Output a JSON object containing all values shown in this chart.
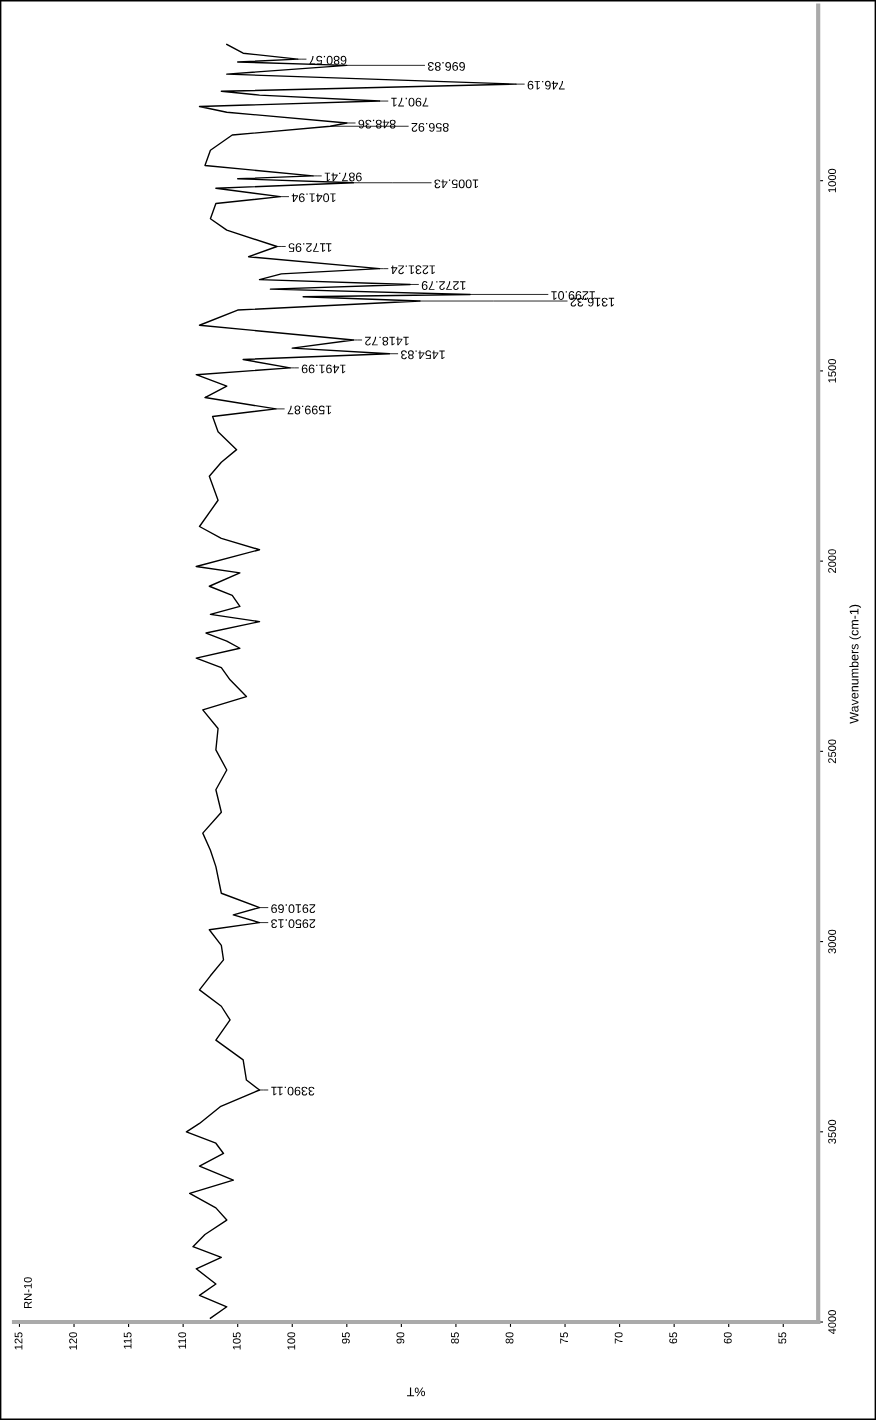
{
  "chart_data": {
    "type": "line",
    "orientation": "horizontal",
    "xlabel": "%T",
    "ylabel": "Wavenumbers (cm-1)",
    "color": "#000000",
    "x": [
      642,
      665,
      680.57,
      688,
      696.83,
      720,
      746.19,
      765,
      775,
      790.71,
      805,
      820,
      848.36,
      856.92,
      880,
      920,
      960,
      987.41,
      995,
      1005.43,
      1020,
      1041.94,
      1060,
      1100,
      1130,
      1172.95,
      1200,
      1231.24,
      1245,
      1260,
      1272.79,
      1285,
      1299.01,
      1305,
      1316.32,
      1340,
      1380,
      1418.72,
      1440,
      1454.83,
      1470,
      1491.99,
      1510,
      1540,
      1570,
      1599.87,
      1620,
      1660,
      1707,
      1740,
      1777,
      1840,
      1909,
      1940,
      1970,
      2014,
      2031,
      2066,
      2090,
      2119,
      2140,
      2159,
      2189,
      2210,
      2229,
      2255,
      2280,
      2312,
      2356,
      2391,
      2440,
      2496,
      2549,
      2601,
      2660,
      2715,
      2760,
      2803,
      2873,
      2910.69,
      2930,
      2950.13,
      2969,
      3010,
      3048,
      3090,
      3127,
      3170,
      3206,
      3259,
      3311,
      3364,
      3390.11,
      3434,
      3478,
      3500,
      3530,
      3557,
      3590,
      3627,
      3662,
      3700,
      3732,
      3770,
      3802,
      3830,
      3860,
      3900,
      3930,
      3960,
      3990
    ],
    "values": [
      106.0,
      104.5,
      99.5,
      105,
      95,
      106,
      79.5,
      106.5,
      103,
      92,
      108.5,
      106,
      95,
      96.5,
      105.5,
      107.5,
      108,
      98.1,
      105,
      94.4,
      107,
      101.1,
      107,
      107.5,
      106,
      101.4,
      104,
      92,
      101,
      103,
      89.2,
      102,
      83.7,
      99,
      88.3,
      105,
      108.5,
      94.4,
      100,
      91.1,
      104.5,
      100.2,
      108.8,
      106,
      108,
      101.5,
      107.3,
      106.8,
      105.1,
      106.5,
      107.6,
      106.8,
      108.5,
      106.5,
      103.0,
      108.8,
      104.8,
      107.6,
      105.5,
      104.8,
      107.5,
      103.0,
      107.9,
      106,
      104.8,
      108.8,
      106.5,
      105.7,
      104.2,
      108.2,
      106.8,
      107.0,
      106.0,
      107.0,
      106.5,
      108.2,
      107.5,
      107.0,
      106.5,
      103.0,
      105.4,
      103.0,
      107.6,
      106.5,
      106.3,
      107.5,
      108.5,
      106.5,
      105.7,
      107.0,
      104.5,
      104.2,
      103.0,
      106.6,
      108.5,
      109.7,
      107,
      106.3,
      108.5,
      105.4,
      109.4,
      107,
      106.0,
      108,
      109.1,
      106.5,
      108.8,
      107.0,
      108.5,
      106.0,
      107.5
    ],
    "xlim": [
      125.5,
      51.8
    ],
    "xticks": [
      125,
      120,
      115,
      110,
      105,
      100,
      95,
      90,
      85,
      80,
      75,
      70,
      65,
      60,
      55
    ],
    "ylim": [
      4000,
      540
    ],
    "yticks": [
      1000,
      1500,
      2000,
      2500,
      3000,
      3500,
      4000
    ],
    "grid": false,
    "annotations": [
      "RN-10",
      {
        "text": "680.57",
        "x": 99.5,
        "y": 680.57
      },
      {
        "text": "696.83",
        "x": 95,
        "y": 696.83
      },
      {
        "text": "746.19",
        "x": 79.5,
        "y": 746.19
      },
      {
        "text": "790.71",
        "x": 92,
        "y": 790.71
      },
      {
        "text": "848.36",
        "x": 95,
        "y": 848.36
      },
      {
        "text": "856.92",
        "x": 96.5,
        "y": 856.92
      },
      {
        "text": "987.41",
        "x": 98.1,
        "y": 987.41
      },
      {
        "text": "1005.43",
        "x": 94.4,
        "y": 1005.43
      },
      {
        "text": "1041.94",
        "x": 101.1,
        "y": 1041.94
      },
      {
        "text": "1172.95",
        "x": 101.4,
        "y": 1172.95
      },
      {
        "text": "1231.24",
        "x": 92,
        "y": 1231.24
      },
      {
        "text": "1272.79",
        "x": 89.2,
        "y": 1272.79
      },
      {
        "text": "1299.01",
        "x": 83.7,
        "y": 1299.01
      },
      {
        "text": "1316.32",
        "x": 88.3,
        "y": 1316.32
      },
      {
        "text": "1418.72",
        "x": 94.4,
        "y": 1418.72
      },
      {
        "text": "1454.83",
        "x": 91.1,
        "y": 1454.83
      },
      {
        "text": "1491.99",
        "x": 100.2,
        "y": 1491.99
      },
      {
        "text": "1599.87",
        "x": 101.5,
        "y": 1599.87
      },
      {
        "text": "2910.69",
        "x": 103.0,
        "y": 2910.69
      },
      {
        "text": "2950.13",
        "x": 103.0,
        "y": 2950.13
      },
      {
        "text": "3390.11",
        "x": 103.0,
        "y": 3390.11
      }
    ]
  }
}
